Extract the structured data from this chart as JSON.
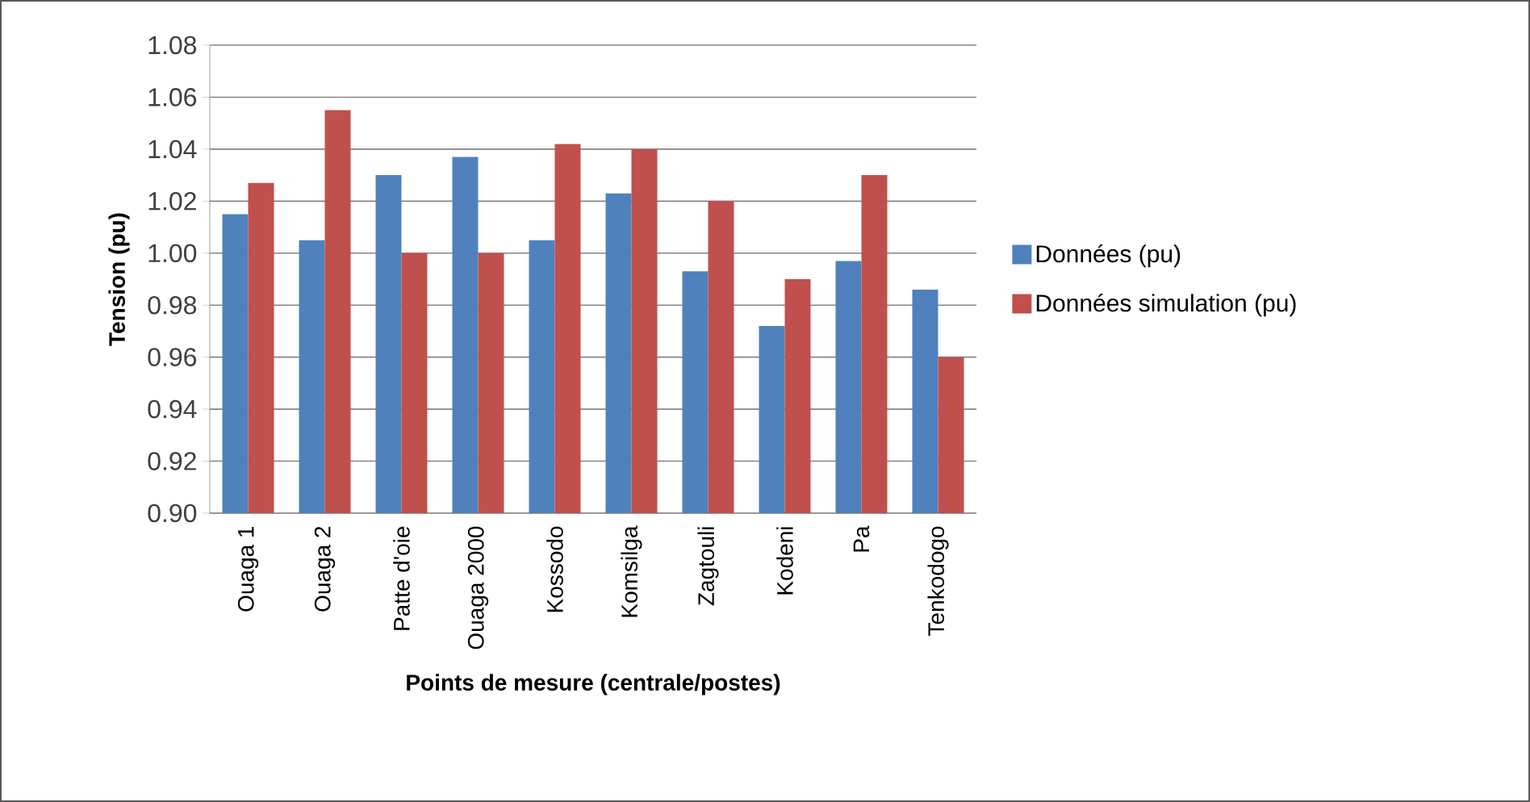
{
  "chart_data": {
    "type": "bar",
    "xlabel": "Points de mesure (centrale/postes)",
    "ylabel": "Tension (pu)",
    "categories": [
      "Ouaga 1",
      "Ouaga 2",
      "Patte d'oie",
      "Ouaga 2000",
      "Kossodo",
      "Komsilga",
      "Zagtouli",
      "Kodeni",
      "Pa",
      "Tenkodogo"
    ],
    "series": [
      {
        "name": "Données (pu)",
        "color": "#4f81bd",
        "values": [
          1.015,
          1.005,
          1.03,
          1.037,
          1.005,
          1.023,
          0.993,
          0.972,
          0.997,
          0.986
        ]
      },
      {
        "name": "Données simulation (pu)",
        "color": "#c0504d",
        "values": [
          1.027,
          1.055,
          1.0,
          1.0,
          1.042,
          1.04,
          1.02,
          0.99,
          1.03,
          0.96
        ]
      }
    ],
    "ylim": [
      0.9,
      1.08
    ],
    "yticks": [
      {
        "value": 0.9,
        "label": "0.90"
      },
      {
        "value": 0.92,
        "label": "0.92"
      },
      {
        "value": 0.94,
        "label": "0.94"
      },
      {
        "value": 0.96,
        "label": "0.96"
      },
      {
        "value": 0.98,
        "label": "0.98"
      },
      {
        "value": 1.0,
        "label": "1.00"
      },
      {
        "value": 1.02,
        "label": "1.02"
      },
      {
        "value": 1.04,
        "label": "1.04"
      },
      {
        "value": 1.06,
        "label": "1.06"
      },
      {
        "value": 1.08,
        "label": "1.08"
      }
    ],
    "grid": "y",
    "legend": "right"
  }
}
